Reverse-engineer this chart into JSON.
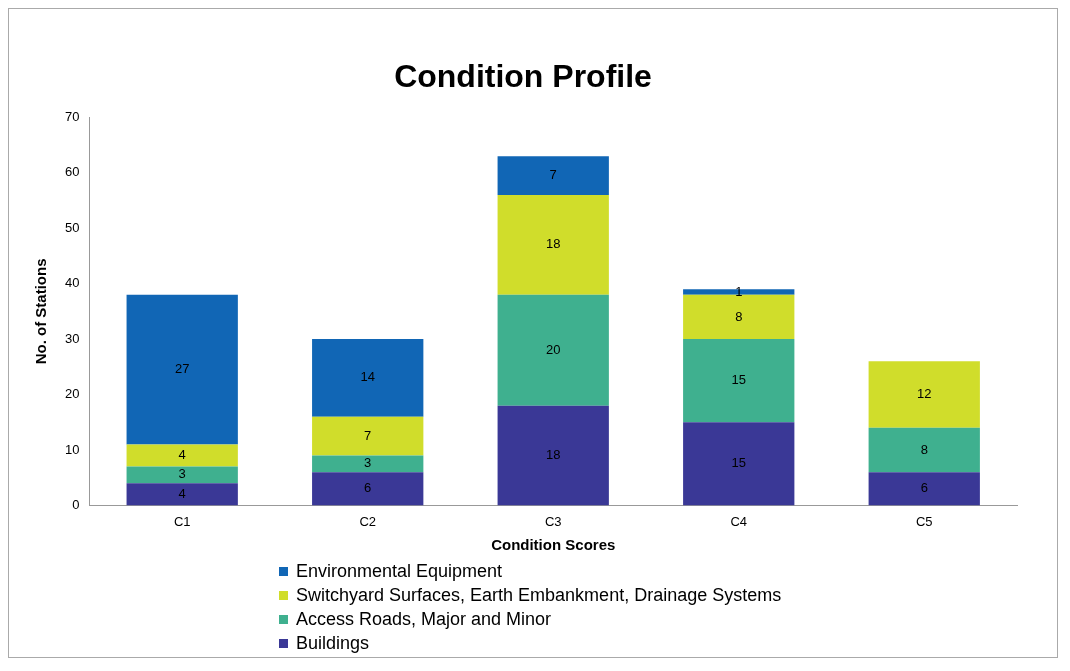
{
  "chart_data": {
    "type": "bar",
    "title": "Condition Profile",
    "xlabel": "Condition Scores",
    "ylabel": "No. of Stations",
    "categories": [
      "C1",
      "C2",
      "C3",
      "C4",
      "C5"
    ],
    "stacked": true,
    "ylim": [
      0,
      70
    ],
    "yticks": [
      0,
      10,
      20,
      30,
      40,
      50,
      60,
      70
    ],
    "grid": false,
    "legend": "bottom",
    "data_labels": true,
    "series": [
      {
        "name": "Buildings",
        "color": "#3a3896",
        "values": [
          4,
          6,
          18,
          15,
          6
        ]
      },
      {
        "name": "Access Roads, Major and Minor",
        "color": "#3fb08f",
        "values": [
          3,
          3,
          20,
          15,
          8
        ]
      },
      {
        "name": "Switchyard Surfaces, Earth Embankment, Drainage Systems",
        "color": "#d0dd2b",
        "values": [
          4,
          7,
          18,
          8,
          12
        ]
      },
      {
        "name": "Environmental Equipment",
        "color": "#1166b5",
        "values": [
          27,
          14,
          7,
          1,
          null
        ]
      }
    ]
  }
}
